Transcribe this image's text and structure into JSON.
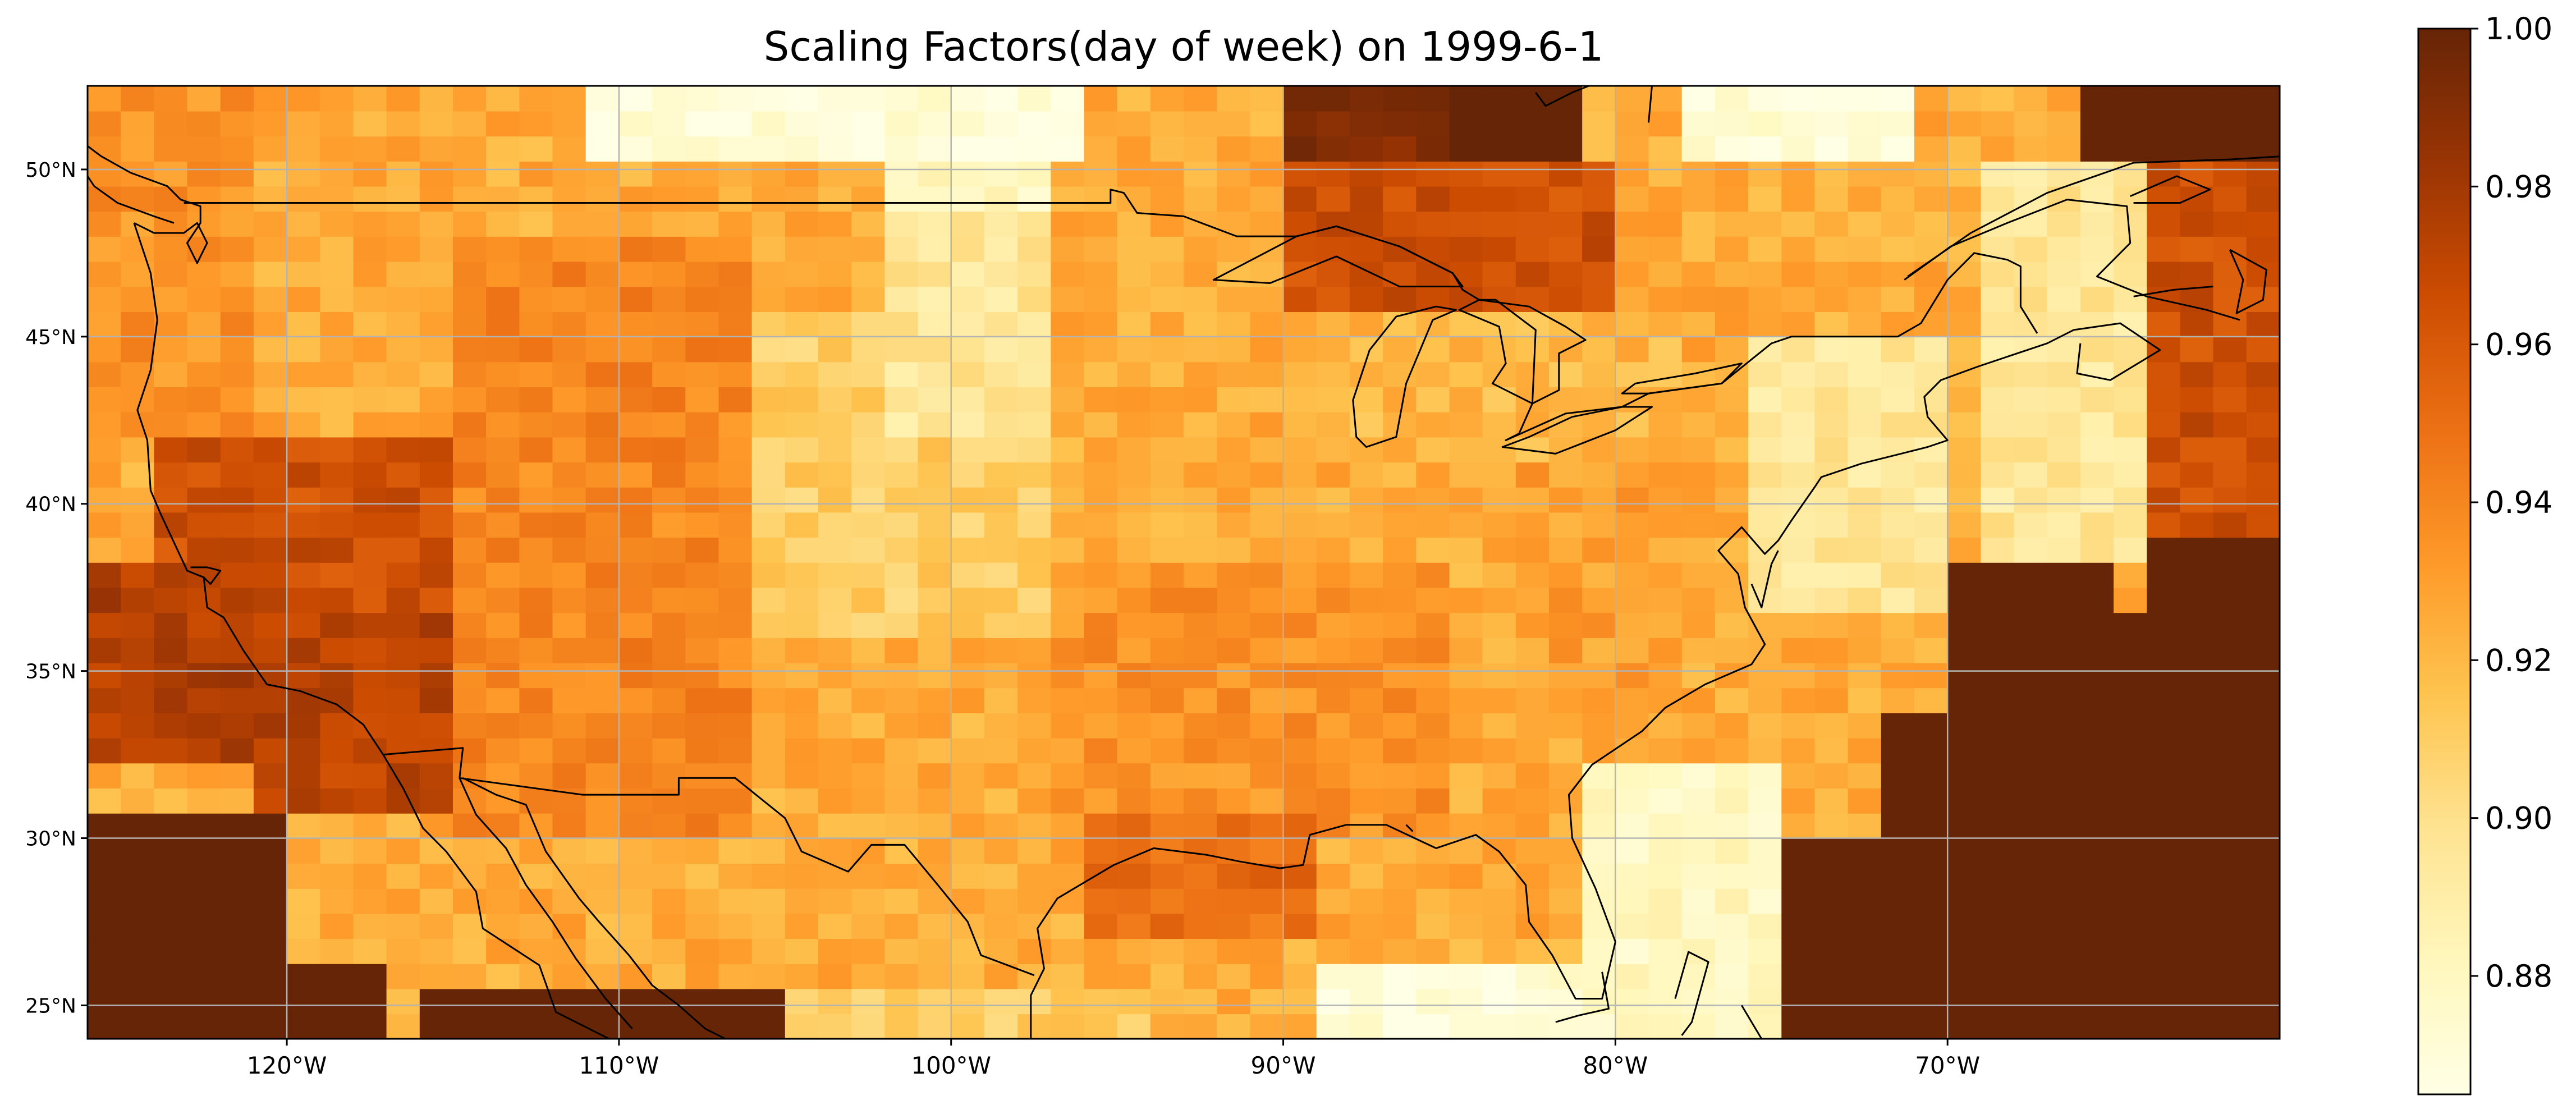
{
  "title": "Scaling Factors(day of week) on 1999-6-1",
  "map": {
    "extent": {
      "lon": [
        -126,
        -60
      ],
      "lat": [
        24,
        52.5
      ]
    },
    "lon_ticks": [
      {
        "value": -120,
        "label": "120°W"
      },
      {
        "value": -110,
        "label": "110°W"
      },
      {
        "value": -100,
        "label": "100°W"
      },
      {
        "value": -90,
        "label": "90°W"
      },
      {
        "value": -80,
        "label": "80°W"
      },
      {
        "value": -70,
        "label": "70°W"
      }
    ],
    "lat_ticks": [
      {
        "value": 25,
        "label": "25°N"
      },
      {
        "value": 30,
        "label": "30°N"
      },
      {
        "value": 35,
        "label": "35°N"
      },
      {
        "value": 40,
        "label": "40°N"
      },
      {
        "value": 45,
        "label": "45°N"
      },
      {
        "value": 50,
        "label": "50°N"
      }
    ],
    "grid": true,
    "cell_size_deg": 1.0
  },
  "colorbar": {
    "colormap": "YlOrBr",
    "range": [
      0.865,
      1.0
    ],
    "ticks": [
      {
        "value": 0.88,
        "label": "0.88"
      },
      {
        "value": 0.9,
        "label": "0.90"
      },
      {
        "value": 0.92,
        "label": "0.92"
      },
      {
        "value": 0.94,
        "label": "0.94"
      },
      {
        "value": 0.96,
        "label": "0.96"
      },
      {
        "value": 0.98,
        "label": "0.98"
      },
      {
        "value": 1.0,
        "label": "1.00"
      }
    ]
  },
  "field_regions": [
    {
      "lon": [
        -126,
        -60
      ],
      "lat": [
        24,
        52.5
      ],
      "value": 0.925
    },
    {
      "lon": [
        -126,
        -121
      ],
      "lat": [
        42,
        52.5
      ],
      "value": 0.935
    },
    {
      "lon": [
        -124,
        -113
      ],
      "lat": [
        32,
        42
      ],
      "value": 0.965
    },
    {
      "lon": [
        -126,
        -121
      ],
      "lat": [
        32,
        38
      ],
      "value": 0.975
    },
    {
      "lon": [
        -121,
        -115
      ],
      "lat": [
        31,
        37
      ],
      "value": 0.972
    },
    {
      "lon": [
        -115,
        -106
      ],
      "lat": [
        30,
        48
      ],
      "value": 0.94
    },
    {
      "lon": [
        -106,
        -97
      ],
      "lat": [
        36,
        46
      ],
      "value": 0.91
    },
    {
      "lon": [
        -102,
        -97
      ],
      "lat": [
        42,
        49
      ],
      "value": 0.895
    },
    {
      "lon": [
        -97,
        -85
      ],
      "lat": [
        30,
        38
      ],
      "value": 0.935
    },
    {
      "lon": [
        -96,
        -89
      ],
      "lat": [
        27,
        31
      ],
      "value": 0.95
    },
    {
      "lon": [
        -83,
        -78
      ],
      "lat": [
        34,
        41
      ],
      "value": 0.93
    },
    {
      "lon": [
        -88,
        -78
      ],
      "lat": [
        41,
        46
      ],
      "value": 0.92
    },
    {
      "lon": [
        -111,
        -96
      ],
      "lat": [
        50,
        52.5
      ],
      "value": 0.87
    },
    {
      "lon": [
        -102,
        -97
      ],
      "lat": [
        49,
        50
      ],
      "value": 0.88
    },
    {
      "lon": [
        -76,
        -70
      ],
      "lat": [
        37,
        45
      ],
      "value": 0.895
    },
    {
      "lon": [
        -81,
        -75
      ],
      "lat": [
        24,
        32
      ],
      "value": 0.88
    },
    {
      "lon": [
        -89,
        -81
      ],
      "lat": [
        24,
        26
      ],
      "value": 0.87
    },
    {
      "lon": [
        -105,
        -94
      ],
      "lat": [
        24,
        25.5
      ],
      "value": 0.91
    },
    {
      "lon": [
        -120,
        -105
      ],
      "lat": [
        25.5,
        30
      ],
      "value": 0.925
    },
    {
      "lon": [
        -126,
        -120
      ],
      "lat": [
        24,
        31
      ],
      "value": 1.0
    },
    {
      "lon": [
        -120,
        -117
      ],
      "lat": [
        24,
        26
      ],
      "value": 1.0
    },
    {
      "lon": [
        -116,
        -105
      ],
      "lat": [
        24,
        25.5
      ],
      "value": 1.0
    },
    {
      "lon": [
        -90,
        -85
      ],
      "lat": [
        50,
        52.5
      ],
      "value": 0.99
    },
    {
      "lon": [
        -85,
        -81
      ],
      "lat": [
        50.5,
        52.5
      ],
      "value": 1.0
    },
    {
      "lon": [
        -90,
        -80
      ],
      "lat": [
        46,
        50
      ],
      "value": 0.965
    },
    {
      "lon": [
        -78,
        -71
      ],
      "lat": [
        50,
        52.5
      ],
      "value": 0.87
    },
    {
      "lon": [
        -69,
        -64
      ],
      "lat": [
        38,
        50
      ],
      "value": 0.895
    },
    {
      "lon": [
        -64,
        -60
      ],
      "lat": [
        38,
        50
      ],
      "value": 0.965
    },
    {
      "lon": [
        -66,
        -60
      ],
      "lat": [
        50,
        52.5
      ],
      "value": 1.0
    },
    {
      "lon": [
        -70,
        -60
      ],
      "lat": [
        24,
        37
      ],
      "value": 1.0
    },
    {
      "lon": [
        -74.5,
        -70
      ],
      "lat": [
        24,
        30
      ],
      "value": 1.0
    },
    {
      "lon": [
        -72,
        -70
      ],
      "lat": [
        30,
        34
      ],
      "value": 1.0
    },
    {
      "lon": [
        -70,
        -65
      ],
      "lat": [
        37,
        38
      ],
      "value": 1.0
    },
    {
      "lon": [
        -64,
        -60
      ],
      "lat": [
        37,
        39
      ],
      "value": 1.0
    }
  ],
  "coastlines": [
    [
      [
        -124.6,
        48.4
      ],
      [
        -124.1,
        46.9
      ],
      [
        -124.0,
        46.2
      ],
      [
        -123.9,
        45.5
      ],
      [
        -124.1,
        44.0
      ],
      [
        -124.5,
        42.8
      ],
      [
        -124.2,
        41.9
      ],
      [
        -124.1,
        40.4
      ],
      [
        -123.8,
        39.7
      ],
      [
        -123.0,
        38.0
      ],
      [
        -122.5,
        37.8
      ],
      [
        -122.4,
        36.9
      ],
      [
        -121.9,
        36.6
      ],
      [
        -121.3,
        35.6
      ],
      [
        -120.6,
        34.6
      ],
      [
        -119.6,
        34.4
      ],
      [
        -118.5,
        34.0
      ],
      [
        -117.7,
        33.4
      ],
      [
        -117.1,
        32.5
      ],
      [
        -116.5,
        31.5
      ],
      [
        -115.9,
        30.3
      ],
      [
        -115.2,
        29.6
      ],
      [
        -114.3,
        28.4
      ],
      [
        -114.1,
        27.3
      ],
      [
        -112.4,
        26.2
      ],
      [
        -111.9,
        24.8
      ],
      [
        -110.3,
        24.0
      ]
    ],
    [
      [
        -114.8,
        31.8
      ],
      [
        -114.3,
        30.7
      ],
      [
        -113.4,
        29.7
      ],
      [
        -112.8,
        28.6
      ],
      [
        -112.0,
        27.5
      ],
      [
        -111.3,
        26.4
      ],
      [
        -110.4,
        25.2
      ],
      [
        -109.6,
        24.3
      ]
    ],
    [
      [
        -114.7,
        31.8
      ],
      [
        -113.7,
        31.3
      ],
      [
        -112.8,
        31.0
      ],
      [
        -112.2,
        29.6
      ],
      [
        -111.2,
        28.2
      ],
      [
        -110.6,
        27.5
      ],
      [
        -109.7,
        26.5
      ],
      [
        -109.0,
        25.6
      ],
      [
        -108.2,
        25.0
      ],
      [
        -107.4,
        24.3
      ],
      [
        -106.8,
        24.0
      ]
    ],
    [
      [
        -97.6,
        24.0
      ],
      [
        -97.6,
        25.3
      ],
      [
        -97.2,
        26.1
      ],
      [
        -97.4,
        27.3
      ],
      [
        -96.8,
        28.2
      ],
      [
        -95.1,
        29.2
      ],
      [
        -93.9,
        29.7
      ],
      [
        -92.3,
        29.5
      ],
      [
        -91.3,
        29.3
      ],
      [
        -90.1,
        29.1
      ],
      [
        -89.4,
        29.2
      ],
      [
        -89.2,
        30.1
      ],
      [
        -88.1,
        30.4
      ],
      [
        -86.9,
        30.4
      ],
      [
        -85.4,
        29.7
      ],
      [
        -84.2,
        30.1
      ],
      [
        -83.5,
        29.6
      ],
      [
        -82.7,
        28.6
      ],
      [
        -82.6,
        27.5
      ],
      [
        -81.9,
        26.5
      ],
      [
        -81.2,
        25.2
      ],
      [
        -80.4,
        25.2
      ],
      [
        -80.0,
        26.9
      ],
      [
        -80.6,
        28.5
      ],
      [
        -81.3,
        30.0
      ],
      [
        -81.4,
        31.3
      ],
      [
        -80.7,
        32.2
      ],
      [
        -79.2,
        33.2
      ],
      [
        -78.5,
        33.9
      ],
      [
        -77.3,
        34.6
      ],
      [
        -75.9,
        35.2
      ],
      [
        -75.5,
        35.8
      ],
      [
        -76.1,
        36.9
      ],
      [
        -76.3,
        37.9
      ],
      [
        -76.9,
        38.6
      ],
      [
        -76.2,
        39.3
      ],
      [
        -75.5,
        38.5
      ],
      [
        -75.1,
        38.9
      ],
      [
        -74.7,
        39.5
      ],
      [
        -74.0,
        40.5
      ],
      [
        -73.8,
        40.8
      ],
      [
        -72.6,
        41.2
      ],
      [
        -71.4,
        41.5
      ],
      [
        -70.6,
        41.7
      ],
      [
        -70.0,
        41.9
      ],
      [
        -70.6,
        42.6
      ],
      [
        -70.7,
        43.2
      ],
      [
        -70.2,
        43.7
      ],
      [
        -69.1,
        44.1
      ],
      [
        -68.2,
        44.4
      ],
      [
        -67.0,
        44.8
      ],
      [
        -66.2,
        45.2
      ],
      [
        -64.8,
        45.4
      ],
      [
        -63.6,
        44.6
      ],
      [
        -65.1,
        43.7
      ],
      [
        -66.1,
        43.9
      ],
      [
        -66.0,
        44.8
      ]
    ],
    [
      [
        -75.9,
        37.6
      ],
      [
        -75.6,
        36.9
      ],
      [
        -75.3,
        38.2
      ],
      [
        -75.1,
        38.6
      ]
    ],
    [
      [
        -71.3,
        46.7
      ],
      [
        -69.9,
        47.7
      ],
      [
        -68.2,
        48.4
      ],
      [
        -66.4,
        49.1
      ],
      [
        -64.6,
        48.9
      ],
      [
        -64.5,
        47.8
      ],
      [
        -65.5,
        46.8
      ],
      [
        -64.0,
        46.2
      ],
      [
        -62.2,
        45.8
      ],
      [
        -61.2,
        45.5
      ]
    ],
    [
      [
        -64.4,
        46.2
      ],
      [
        -63.2,
        46.4
      ],
      [
        -62.0,
        46.5
      ]
    ],
    [
      [
        -71.2,
        46.8
      ],
      [
        -69.3,
        48.1
      ],
      [
        -67.0,
        49.3
      ],
      [
        -64.4,
        50.2
      ],
      [
        -61.5,
        50.3
      ],
      [
        -59.8,
        50.4
      ]
    ],
    [
      [
        -64.5,
        49.2
      ],
      [
        -63.1,
        49.8
      ],
      [
        -62.1,
        49.4
      ],
      [
        -63.0,
        49.0
      ],
      [
        -64.4,
        49.0
      ]
    ],
    [
      [
        -61.5,
        47.6
      ],
      [
        -60.4,
        47.0
      ],
      [
        -60.5,
        46.1
      ],
      [
        -61.3,
        45.7
      ],
      [
        -61.1,
        46.7
      ],
      [
        -61.5,
        47.6
      ]
    ],
    [
      [
        -79.0,
        51.4
      ],
      [
        -78.9,
        52.5
      ]
    ],
    [
      [
        -82.4,
        52.3
      ],
      [
        -82.1,
        51.9
      ],
      [
        -81.3,
        52.3
      ],
      [
        -80.8,
        52.5
      ]
    ],
    [
      [
        -80.4,
        26.0
      ],
      [
        -80.2,
        24.9
      ],
      [
        -81.1,
        24.7
      ],
      [
        -81.8,
        24.5
      ]
    ],
    [
      [
        -78.2,
        25.2
      ],
      [
        -77.8,
        26.6
      ],
      [
        -77.2,
        26.3
      ],
      [
        -77.7,
        24.5
      ],
      [
        -78.0,
        24.1
      ]
    ],
    [
      [
        -76.2,
        25.0
      ],
      [
        -75.6,
        24.0
      ]
    ],
    [
      [
        -79.4,
        23.1
      ],
      [
        -77.3,
        22.0
      ]
    ],
    [
      [
        -86.3,
        30.4
      ],
      [
        -86.1,
        30.2
      ]
    ],
    [
      [
        -124.6,
        48.4
      ],
      [
        -124.0,
        48.1
      ],
      [
        -123.1,
        48.1
      ],
      [
        -122.7,
        48.4
      ],
      [
        -122.4,
        47.8
      ],
      [
        -122.7,
        47.2
      ],
      [
        -123.0,
        47.8
      ],
      [
        -122.6,
        48.4
      ],
      [
        -122.6,
        48.9
      ],
      [
        -123.2,
        49.1
      ],
      [
        -123.6,
        49.5
      ],
      [
        -124.7,
        49.9
      ],
      [
        -125.6,
        50.4
      ],
      [
        -126.0,
        50.7
      ]
    ],
    [
      [
        -123.4,
        48.4
      ],
      [
        -124.0,
        48.6
      ],
      [
        -125.1,
        49.0
      ],
      [
        -125.8,
        49.5
      ],
      [
        -126.0,
        49.8
      ]
    ],
    [
      [
        -122.9,
        38.1
      ],
      [
        -122.4,
        38.1
      ],
      [
        -122.0,
        38.0
      ],
      [
        -122.3,
        37.6
      ],
      [
        -122.5,
        37.8
      ]
    ]
  ],
  "borders": [
    [
      [
        -123.1,
        49.0
      ],
      [
        -95.2,
        49.0
      ],
      [
        -95.2,
        49.4
      ],
      [
        -94.8,
        49.3
      ],
      [
        -94.4,
        48.7
      ],
      [
        -93.0,
        48.6
      ],
      [
        -91.4,
        48.0
      ],
      [
        -89.6,
        48.0
      ],
      [
        -88.4,
        48.3
      ],
      [
        -86.5,
        47.7
      ],
      [
        -84.9,
        46.9
      ],
      [
        -84.6,
        46.4
      ],
      [
        -84.1,
        46.1
      ],
      [
        -83.6,
        46.1
      ],
      [
        -82.4,
        45.2
      ],
      [
        -82.5,
        43.0
      ],
      [
        -82.9,
        42.1
      ],
      [
        -83.3,
        41.9
      ],
      [
        -81.5,
        42.7
      ],
      [
        -79.8,
        42.9
      ],
      [
        -79.0,
        43.3
      ],
      [
        -76.8,
        43.6
      ],
      [
        -75.3,
        44.8
      ],
      [
        -74.7,
        45.0
      ],
      [
        -71.5,
        45.0
      ],
      [
        -70.8,
        45.4
      ],
      [
        -70.0,
        46.7
      ],
      [
        -69.2,
        47.5
      ],
      [
        -68.2,
        47.3
      ],
      [
        -67.8,
        47.1
      ],
      [
        -67.8,
        45.9
      ],
      [
        -67.3,
        45.1
      ]
    ],
    [
      [
        -117.1,
        32.5
      ],
      [
        -114.7,
        32.7
      ],
      [
        -114.8,
        31.8
      ],
      [
        -111.1,
        31.3
      ],
      [
        -108.2,
        31.3
      ],
      [
        -108.2,
        31.8
      ],
      [
        -106.5,
        31.8
      ],
      [
        -105.0,
        30.6
      ],
      [
        -104.5,
        29.6
      ],
      [
        -103.1,
        29.0
      ],
      [
        -102.4,
        29.8
      ],
      [
        -101.4,
        29.8
      ],
      [
        -100.4,
        28.6
      ],
      [
        -99.5,
        27.5
      ],
      [
        -99.1,
        26.5
      ],
      [
        -97.5,
        25.9
      ]
    ]
  ],
  "lakes": [
    [
      [
        -92.1,
        46.7
      ],
      [
        -90.4,
        46.6
      ],
      [
        -88.4,
        47.4
      ],
      [
        -86.5,
        46.5
      ],
      [
        -84.6,
        46.5
      ],
      [
        -84.9,
        46.9
      ],
      [
        -86.5,
        47.7
      ],
      [
        -88.4,
        48.3
      ],
      [
        -89.6,
        48.0
      ],
      [
        -92.1,
        46.7
      ]
    ],
    [
      [
        -87.8,
        42.0
      ],
      [
        -87.5,
        41.7
      ],
      [
        -86.6,
        42.0
      ],
      [
        -86.3,
        43.6
      ],
      [
        -85.5,
        45.5
      ],
      [
        -84.8,
        45.8
      ],
      [
        -85.4,
        45.9
      ],
      [
        -86.6,
        45.6
      ],
      [
        -87.4,
        44.6
      ],
      [
        -87.9,
        43.1
      ],
      [
        -87.8,
        42.0
      ]
    ],
    [
      [
        -84.7,
        45.8
      ],
      [
        -83.5,
        45.3
      ],
      [
        -83.3,
        44.2
      ],
      [
        -83.7,
        43.6
      ],
      [
        -82.5,
        43.0
      ],
      [
        -81.7,
        43.4
      ],
      [
        -81.7,
        44.5
      ],
      [
        -80.9,
        44.9
      ],
      [
        -81.5,
        45.3
      ],
      [
        -82.6,
        45.9
      ],
      [
        -84.1,
        46.1
      ],
      [
        -84.7,
        45.8
      ]
    ],
    [
      [
        -83.4,
        41.7
      ],
      [
        -81.8,
        41.5
      ],
      [
        -80.0,
        42.2
      ],
      [
        -78.9,
        42.9
      ],
      [
        -79.8,
        42.9
      ],
      [
        -81.3,
        42.6
      ],
      [
        -82.6,
        42.0
      ],
      [
        -83.4,
        41.7
      ]
    ],
    [
      [
        -79.8,
        43.3
      ],
      [
        -79.0,
        43.3
      ],
      [
        -76.8,
        43.6
      ],
      [
        -76.2,
        44.2
      ],
      [
        -77.6,
        43.9
      ],
      [
        -79.4,
        43.6
      ],
      [
        -79.8,
        43.3
      ]
    ]
  ]
}
